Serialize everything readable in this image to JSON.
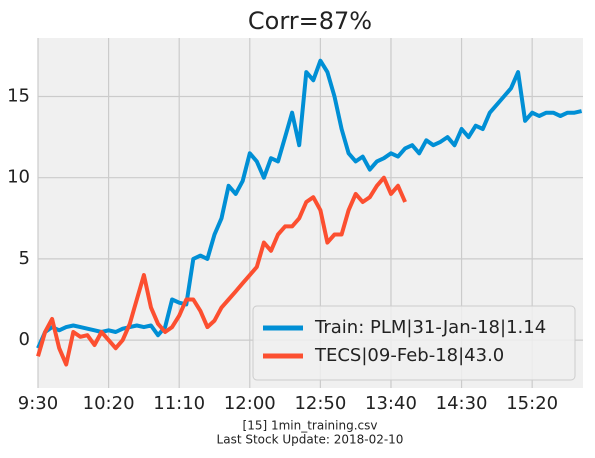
{
  "chart_data": {
    "type": "line",
    "title": "Corr=87%",
    "notes": [
      "[15] 1min_training.csv",
      "Last Stock Update: 2018-02-10"
    ],
    "xlim": [
      570,
      956
    ],
    "ylim": [
      -2.95,
      18.6
    ],
    "xticks": [
      {
        "value": 570,
        "label": "9:30"
      },
      {
        "value": 620,
        "label": "10:20"
      },
      {
        "value": 670,
        "label": "11:10"
      },
      {
        "value": 720,
        "label": "12:00"
      },
      {
        "value": 770,
        "label": "12:50"
      },
      {
        "value": 820,
        "label": "13:40"
      },
      {
        "value": 870,
        "label": "14:30"
      },
      {
        "value": 920,
        "label": "15:20"
      }
    ],
    "yticks": [
      0,
      5,
      10,
      15
    ],
    "grid": true,
    "legend": "lower right",
    "series": [
      {
        "name": "Train: PLM|31-Jan-18|1.14",
        "color": "#008fd5",
        "x": [
          570,
          575,
          580,
          585,
          590,
          595,
          600,
          605,
          610,
          615,
          620,
          625,
          630,
          635,
          640,
          645,
          650,
          655,
          660,
          665,
          670,
          675,
          680,
          685,
          690,
          695,
          700,
          705,
          710,
          715,
          720,
          725,
          730,
          735,
          740,
          745,
          750,
          755,
          760,
          765,
          770,
          775,
          780,
          785,
          790,
          795,
          800,
          805,
          810,
          815,
          820,
          825,
          830,
          835,
          840,
          845,
          850,
          855,
          860,
          865,
          870,
          875,
          880,
          885,
          890,
          895,
          900,
          905,
          910,
          915,
          920,
          925,
          930,
          935,
          940,
          945,
          950,
          955
        ],
        "values": [
          -0.5,
          0.5,
          0.8,
          0.6,
          0.8,
          0.9,
          0.8,
          0.7,
          0.6,
          0.5,
          0.6,
          0.5,
          0.7,
          0.8,
          0.9,
          0.8,
          0.9,
          0.3,
          0.8,
          2.5,
          2.3,
          2.2,
          5.0,
          5.2,
          5.0,
          6.5,
          7.5,
          9.5,
          9.0,
          9.8,
          11.5,
          11.0,
          10.0,
          11.2,
          11.0,
          12.5,
          14.0,
          12.0,
          16.5,
          16.0,
          17.2,
          16.5,
          15.0,
          13.0,
          11.5,
          11.0,
          11.3,
          10.5,
          11.0,
          11.2,
          11.5,
          11.3,
          11.8,
          12.0,
          11.5,
          12.3,
          12.0,
          12.2,
          12.5,
          12.0,
          13.0,
          12.5,
          13.2,
          13.0,
          14.0,
          14.5,
          15.0,
          15.5,
          16.5,
          13.5,
          14.0,
          13.8,
          14.0,
          14.0,
          13.8,
          14.0,
          14.0,
          14.1
        ]
      },
      {
        "name": "TECS|09-Feb-18|43.0",
        "color": "#fc4f30",
        "x": [
          570,
          575,
          580,
          585,
          590,
          595,
          600,
          605,
          610,
          615,
          620,
          625,
          630,
          635,
          640,
          645,
          650,
          655,
          660,
          665,
          670,
          675,
          680,
          685,
          690,
          695,
          700,
          705,
          710,
          715,
          720,
          725,
          730,
          735,
          740,
          745,
          750,
          755,
          760,
          765,
          770,
          775,
          780,
          785,
          790,
          795,
          800,
          805,
          810,
          815,
          820,
          825,
          830
        ],
        "values": [
          -1,
          0.5,
          1.3,
          -0.5,
          -1.5,
          0.5,
          0.2,
          0.3,
          -0.3,
          0.5,
          0,
          -0.5,
          0,
          1,
          2.5,
          4,
          2,
          1,
          0.5,
          0.8,
          1.5,
          2.5,
          2.5,
          1.8,
          0.8,
          1.2,
          2,
          2.5,
          3,
          3.5,
          4,
          4.5,
          6,
          5.5,
          6.5,
          7,
          7,
          7.5,
          8.5,
          8.8,
          8,
          6,
          6.5,
          6.5,
          8,
          9,
          8.5,
          8.8,
          9.5,
          10,
          9,
          9.5,
          8.5
        ]
      }
    ]
  }
}
